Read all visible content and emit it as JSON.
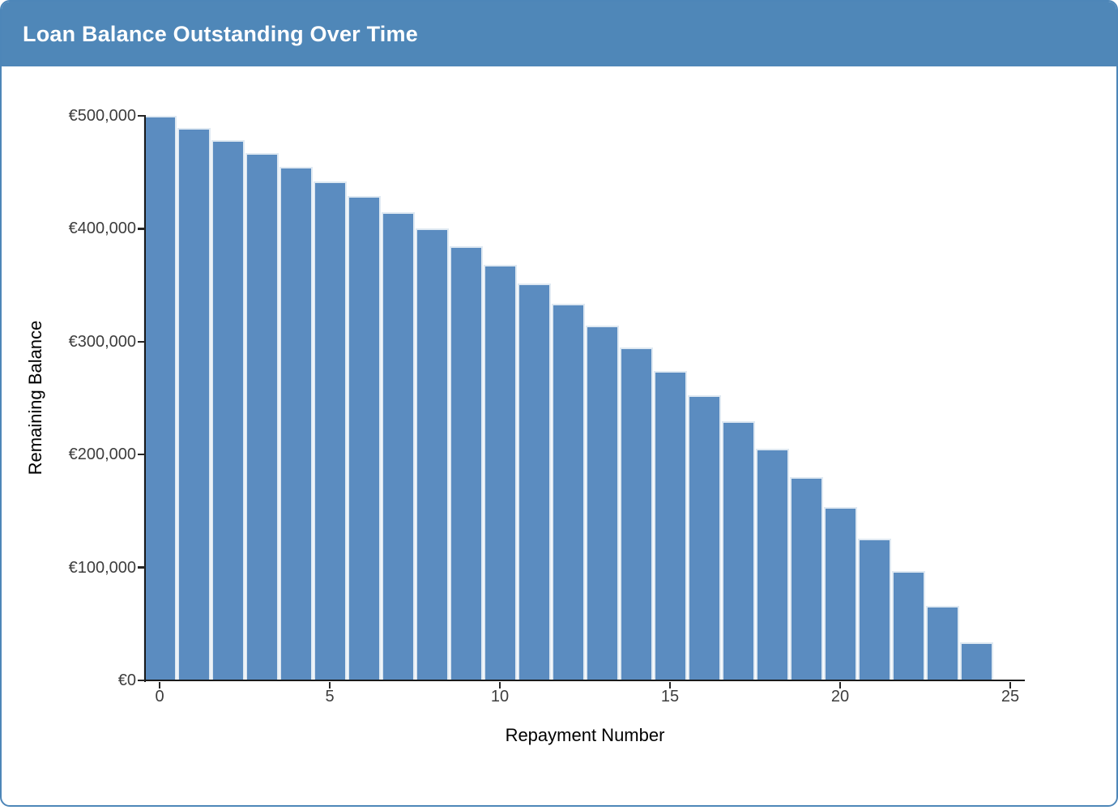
{
  "header": {
    "title": "Loan Balance Outstanding Over Time",
    "background_color": "#4f87b8",
    "text_color": "#ffffff"
  },
  "card": {
    "border_color": "#4d86b8",
    "background_color": "#ffffff"
  },
  "chart_data": {
    "type": "bar",
    "title": "Loan Balance Outstanding Over Time",
    "xlabel": "Repayment Number",
    "ylabel": "Remaining Balance",
    "x": [
      0,
      1,
      2,
      3,
      4,
      5,
      6,
      7,
      8,
      9,
      10,
      11,
      12,
      13,
      14,
      15,
      16,
      17,
      18,
      19,
      20,
      21,
      22,
      23,
      24
    ],
    "values": [
      500000,
      489524,
      478524,
      466974,
      454846,
      442112,
      428742,
      414702,
      399961,
      384483,
      368231,
      351166,
      333249,
      314435,
      294680,
      273938,
      252159,
      229290,
      205279,
      180066,
      153593,
      125797,
      96610,
      65965,
      33787
    ],
    "series_name": "Remaining Balance",
    "xlim": [
      -0.43,
      25.43
    ],
    "ylim": [
      0,
      500000
    ],
    "x_ticks": [
      0,
      5,
      10,
      15,
      20,
      25
    ],
    "y_ticks": [
      0,
      100000,
      200000,
      300000,
      400000,
      500000
    ],
    "y_tick_labels": [
      "€0",
      "€100,000",
      "€200,000",
      "€300,000",
      "€400,000",
      "€500,000"
    ],
    "grid": false,
    "legend": "none",
    "bar_color": "#5b8cc0",
    "bar_edge_color": "#dfe9f2",
    "spine_color": "#1a1a1a",
    "tick_label_color": "#3d3d3d",
    "axis_label_color": "#000000"
  }
}
